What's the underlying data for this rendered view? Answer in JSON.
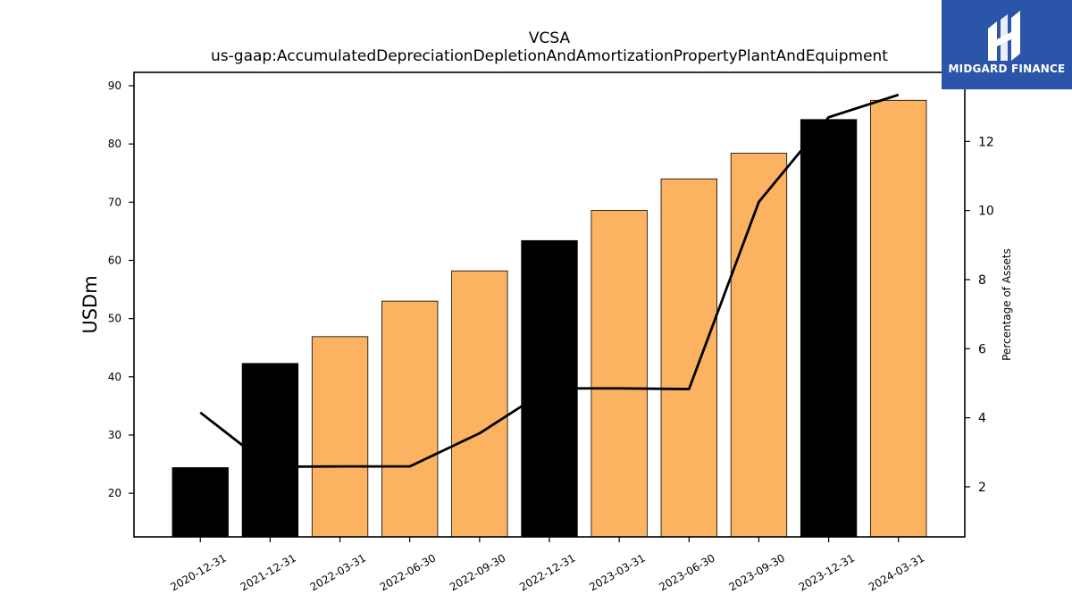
{
  "chart_data": {
    "type": "bar",
    "title": "VCSA",
    "subtitle": "us-gaap:AccumulatedDepreciationDepletionAndAmortizationPropertyPlantAndEquipment",
    "ylabel": "USDm",
    "y2label": "Percentage of Assets",
    "categories": [
      "2020-12-31",
      "2021-12-31",
      "2022-03-31",
      "2022-06-30",
      "2022-09-30",
      "2022-12-31",
      "2023-03-31",
      "2023-06-30",
      "2023-09-30",
      "2023-12-31",
      "2024-03-31"
    ],
    "values": [
      24.4,
      42.3,
      46.9,
      53.0,
      58.2,
      63.4,
      68.6,
      74.0,
      78.4,
      84.2,
      87.5
    ],
    "bar_colors": [
      "#000000",
      "#000000",
      "#fbb362",
      "#fbb362",
      "#fbb362",
      "#000000",
      "#fbb362",
      "#fbb362",
      "#fbb362",
      "#000000",
      "#fbb362"
    ],
    "line_values": [
      4.15,
      2.58,
      2.59,
      2.59,
      3.55,
      4.85,
      4.85,
      4.83,
      10.25,
      12.7,
      13.35
    ],
    "ylim": [
      12.5,
      92.3
    ],
    "y_ticks": [
      20,
      30,
      40,
      50,
      60,
      70,
      80,
      90
    ],
    "y2lim": [
      0.55,
      14.0
    ],
    "y2_ticks": [
      2,
      4,
      6,
      8,
      10,
      12
    ],
    "grid": false,
    "line_color": "#000000"
  },
  "logo": {
    "text": "MIDGARD FINANCE",
    "background": "#2b55a8"
  }
}
